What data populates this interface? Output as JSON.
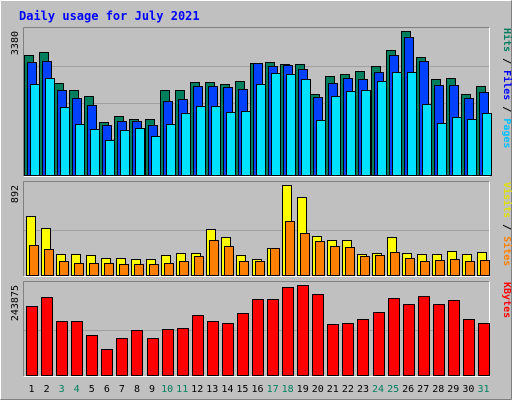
{
  "chart_data": {
    "type": "bar",
    "title": "Daily usage for July 2021",
    "colors": {
      "background": "#c0c0c0",
      "frame_light": "#ffffff",
      "frame_dark": "#808080",
      "title": "#0000ff",
      "hits": "#007f5f",
      "files": "#0040ff",
      "pages": "#00e0ff",
      "visits": "#ffff00",
      "sites": "#ff8000",
      "kbytes": "#ff0000",
      "label_hits": "#007f5f",
      "label_files": "#0000ff",
      "label_pages": "#00c0ff",
      "label_visits": "#e0e000",
      "label_sites": "#ff8000",
      "label_kbytes": "#ff0000",
      "weekend_label": "#008060",
      "weekday_label": "#000000"
    },
    "categories": [
      "1",
      "2",
      "3",
      "4",
      "5",
      "6",
      "7",
      "8",
      "9",
      "10",
      "11",
      "12",
      "13",
      "14",
      "15",
      "16",
      "17",
      "18",
      "19",
      "20",
      "21",
      "22",
      "23",
      "24",
      "25",
      "26",
      "27",
      "28",
      "29",
      "30",
      "31"
    ],
    "weekend_days": [
      "3",
      "4",
      "10",
      "11",
      "17",
      "18",
      "24",
      "25",
      "31"
    ],
    "panels": [
      {
        "id": "requests",
        "ymax_label": "3380",
        "ymax": 3380,
        "axis_labels": [
          {
            "text": "Hits",
            "color_key": "label_hits"
          },
          {
            "text": " / ",
            "color_key": "weekday_label"
          },
          {
            "text": "Files",
            "color_key": "label_files"
          },
          {
            "text": " / ",
            "color_key": "weekday_label"
          },
          {
            "text": "Pages",
            "color_key": "label_pages"
          }
        ],
        "series": [
          {
            "name": "Hits",
            "color_key": "hits",
            "values": [
              2800,
              2860,
              2140,
              1970,
              1830,
              1240,
              1370,
              1300,
              1310,
              1980,
              1980,
              2160,
              2160,
              2130,
              2180,
              2620,
              2640,
              2580,
              2580,
              1890,
              2300,
              2350,
              2430,
              2540,
              2920,
              3360,
              2750,
              2240,
              2270,
              1890,
              2080
            ]
          },
          {
            "name": "Files",
            "color_key": "files",
            "values": [
              2640,
              2650,
              1980,
              1790,
              1640,
              1170,
              1250,
              1260,
              1170,
              1720,
              1780,
              2070,
              2070,
              2040,
              2000,
              2600,
              2540,
              2570,
              2480,
              1810,
              2150,
              2270,
              2230,
              2410,
              2800,
              3210,
              2660,
              2090,
              2100,
              1800,
              1940
            ]
          },
          {
            "name": "Pages",
            "color_key": "pages",
            "values": [
              2130,
              2250,
              1580,
              1200,
              1080,
              820,
              1040,
              1090,
              900,
              1200,
              1450,
              1610,
              1610,
              1480,
              1500,
              2120,
              2370,
              2350,
              2230,
              1290,
              1830,
              1960,
              1990,
              2180,
              2400,
              2400,
              1650,
              1220,
              1360,
              1310,
              1440
            ]
          }
        ]
      },
      {
        "id": "visitors",
        "ymax_label": "892",
        "ymax": 892,
        "axis_labels": [
          {
            "text": "Visits",
            "color_key": "label_visits"
          },
          {
            "text": " / ",
            "color_key": "weekday_label"
          },
          {
            "text": "Sites",
            "color_key": "label_sites"
          }
        ],
        "series": [
          {
            "name": "Visits",
            "color_key": "visits",
            "values": [
              580,
              460,
              210,
              210,
              200,
              170,
              170,
              160,
              160,
              200,
              220,
              220,
              450,
              370,
              200,
              160,
              260,
              880,
              760,
              380,
              340,
              340,
              210,
              220,
              370,
              220,
              210,
              210,
              240,
              210,
              230
            ]
          },
          {
            "name": "Sites",
            "color_key": "sites",
            "values": [
              290,
              250,
              140,
              120,
              120,
              120,
              110,
              110,
              110,
              120,
              140,
              190,
              340,
              280,
              140,
              140,
              260,
              530,
              410,
              330,
              280,
              270,
              190,
              200,
              230,
              170,
              140,
              150,
              160,
              140,
              150
            ]
          }
        ]
      },
      {
        "id": "volume",
        "ymax_label": "243875",
        "ymax": 243875,
        "axis_labels": [
          {
            "text": "KBytes",
            "color_key": "label_kbytes"
          }
        ],
        "series": [
          {
            "name": "KBytes",
            "color_key": "kbytes",
            "values": [
              186000,
              210000,
              146000,
              146000,
              107000,
              70000,
              100000,
              120000,
              100000,
              122000,
              126000,
              160000,
              146000,
              140000,
              166000,
              204000,
              204000,
              236000,
              241000,
              217000,
              136000,
              140000,
              150000,
              170000,
              206000,
              190000,
              211000,
              190000,
              200000,
              150000,
              140000
            ]
          }
        ]
      }
    ]
  }
}
